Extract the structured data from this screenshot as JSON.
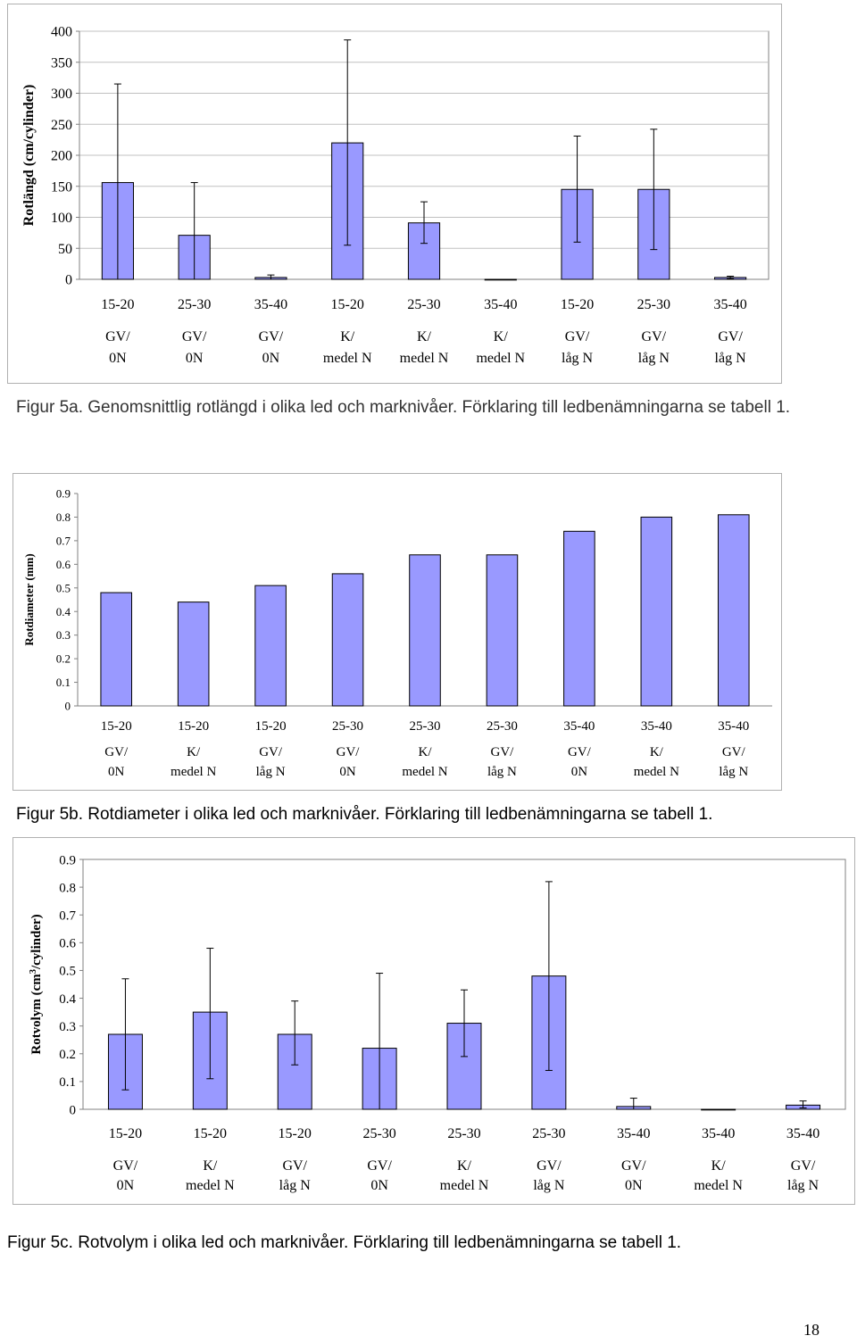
{
  "page": {
    "number": "18"
  },
  "chart_data": [
    {
      "type": "bar",
      "ylabel": "Rotlängd (cm/cylinder)",
      "ylim": [
        0,
        400
      ],
      "yticks": [
        "0",
        "50",
        "100",
        "150",
        "200",
        "250",
        "300",
        "350",
        "400"
      ],
      "grid": true,
      "error_bars": true,
      "categories": [
        {
          "depth": "15-20",
          "line1": "GV/",
          "line2": "0N"
        },
        {
          "depth": "25-30",
          "line1": "GV/",
          "line2": "0N"
        },
        {
          "depth": "35-40",
          "line1": "GV/",
          "line2": "0N"
        },
        {
          "depth": "15-20",
          "line1": "K/",
          "line2": "medel N"
        },
        {
          "depth": "25-30",
          "line1": "K/",
          "line2": "medel N"
        },
        {
          "depth": "35-40",
          "line1": "K/",
          "line2": "medel N"
        },
        {
          "depth": "15-20",
          "line1": "GV/",
          "line2": "låg N"
        },
        {
          "depth": "25-30",
          "line1": "GV/",
          "line2": "låg N"
        },
        {
          "depth": "35-40",
          "line1": "GV/",
          "line2": "låg N"
        }
      ],
      "values": [
        156,
        71,
        3,
        220,
        91,
        0,
        145,
        145,
        3
      ],
      "error_low": [
        0,
        0,
        0,
        55,
        58,
        0,
        60,
        48,
        1
      ],
      "error_high": [
        315,
        156,
        7,
        386,
        125,
        0,
        231,
        242,
        5
      ],
      "caption": "Figur 5a. Genomsnittlig rotlängd i olika led och marknivåer. Förklaring till ledbenämningarna se tabell 1."
    },
    {
      "type": "bar",
      "ylabel": "Rotdiameter (mm)",
      "ylim": [
        0,
        0.9
      ],
      "yticks": [
        "0",
        "0.1",
        "0.2",
        "0.3",
        "0.4",
        "0.5",
        "0.6",
        "0.7",
        "0.8",
        "0.9"
      ],
      "grid": false,
      "error_bars": false,
      "categories": [
        {
          "depth": "15-20",
          "line1": "GV/",
          "line2": "0N"
        },
        {
          "depth": "15-20",
          "line1": "K/",
          "line2": "medel N"
        },
        {
          "depth": "15-20",
          "line1": "GV/",
          "line2": "låg N"
        },
        {
          "depth": "25-30",
          "line1": "GV/",
          "line2": "0N"
        },
        {
          "depth": "25-30",
          "line1": "K/",
          "line2": "medel N"
        },
        {
          "depth": "25-30",
          "line1": "GV/",
          "line2": "låg N"
        },
        {
          "depth": "35-40",
          "line1": "GV/",
          "line2": "0N"
        },
        {
          "depth": "35-40",
          "line1": "K/",
          "line2": "medel N"
        },
        {
          "depth": "35-40",
          "line1": "GV/",
          "line2": "låg N"
        }
      ],
      "values": [
        0.48,
        0.44,
        0.51,
        0.56,
        0.64,
        0.64,
        0.74,
        0.8,
        0.81
      ],
      "caption": "Figur 5b. Rotdiameter i olika led och marknivåer. Förklaring till ledbenämningarna se tabell 1."
    },
    {
      "type": "bar",
      "ylabel": "Rotvolym (cm3/cylinder)",
      "ylabel_parts": [
        "Rotvolym (cm",
        "3",
        "/cylinder)"
      ],
      "ylim": [
        0,
        0.9
      ],
      "yticks": [
        "0",
        "0.1",
        "0.2",
        "0.3",
        "0.4",
        "0.5",
        "0.6",
        "0.7",
        "0.8",
        "0.9"
      ],
      "grid": false,
      "error_bars": true,
      "categories": [
        {
          "depth": "15-20",
          "line1": "GV/",
          "line2": "0N"
        },
        {
          "depth": "15-20",
          "line1": "K/",
          "line2": "medel N"
        },
        {
          "depth": "15-20",
          "line1": "GV/",
          "line2": "låg N"
        },
        {
          "depth": "25-30",
          "line1": "GV/",
          "line2": "0N"
        },
        {
          "depth": "25-30",
          "line1": "K/",
          "line2": "medel N"
        },
        {
          "depth": "25-30",
          "line1": "GV/",
          "line2": "låg N"
        },
        {
          "depth": "35-40",
          "line1": "GV/",
          "line2": "0N"
        },
        {
          "depth": "35-40",
          "line1": "K/",
          "line2": "medel N"
        },
        {
          "depth": "35-40",
          "line1": "GV/",
          "line2": "låg N"
        }
      ],
      "values": [
        0.27,
        0.35,
        0.27,
        0.22,
        0.31,
        0.48,
        0.01,
        0.0,
        0.015
      ],
      "error_low": [
        0.07,
        0.11,
        0.16,
        0.0,
        0.19,
        0.14,
        0.0,
        0.0,
        0.005
      ],
      "error_high": [
        0.47,
        0.58,
        0.39,
        0.49,
        0.43,
        0.82,
        0.04,
        0.0,
        0.03
      ],
      "caption": "Figur 5c. Rotvolym i olika led och marknivåer. Förklaring till ledbenämningarna se tabell 1."
    }
  ],
  "colors": {
    "bar_fill": "#9999ff",
    "bar_stroke": "#000000",
    "grid": "#c0c0c0",
    "plot_bg": "#ffffff"
  }
}
